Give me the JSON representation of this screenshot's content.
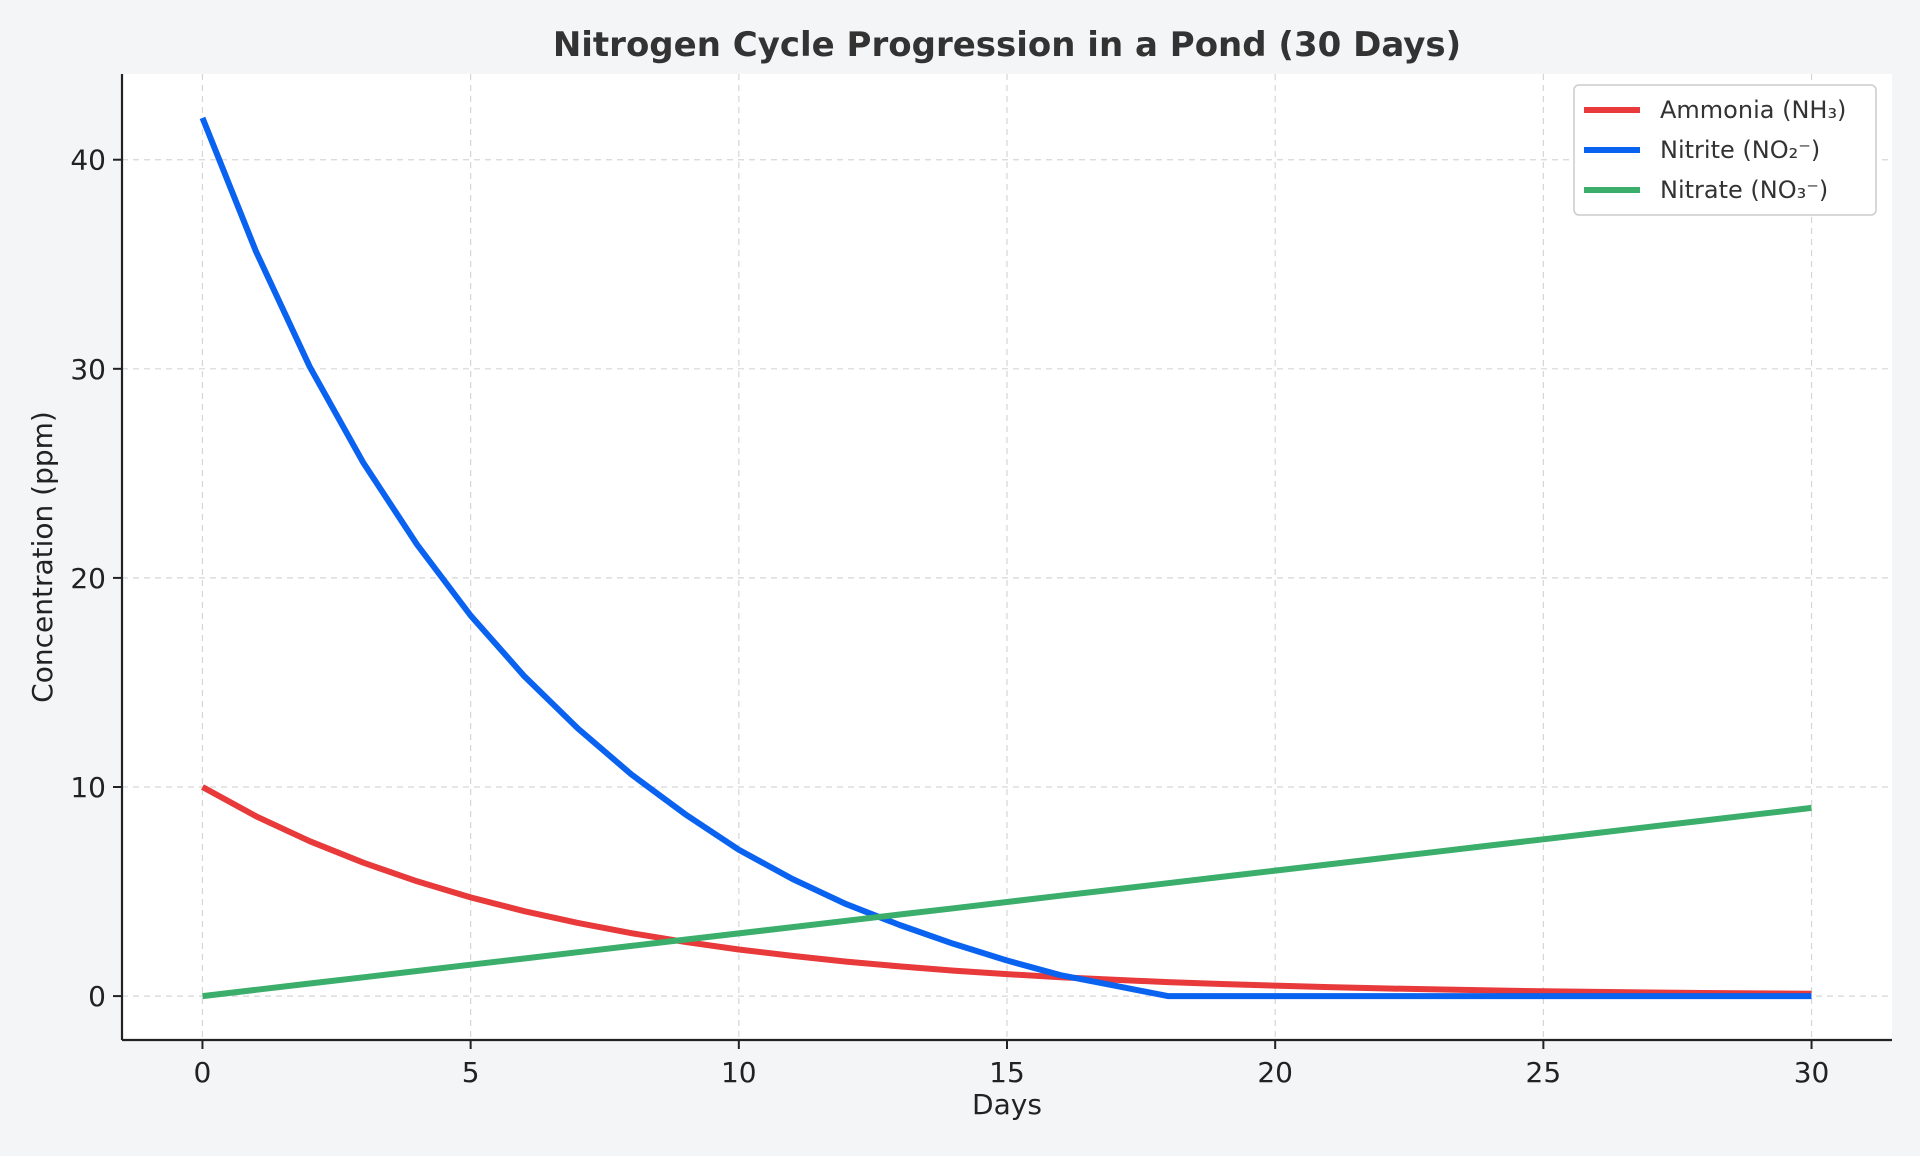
{
  "chart_data": {
    "type": "line",
    "title": "Nitrogen Cycle Progression in a Pond (30 Days)",
    "xlabel": "Days",
    "ylabel": "Concentration (ppm)",
    "xlim": [
      -1.5,
      31.5
    ],
    "ylim": [
      -2.1,
      44.1
    ],
    "x_ticks": [
      0,
      5,
      10,
      15,
      20,
      25,
      30
    ],
    "y_ticks": [
      0,
      10,
      20,
      30,
      40
    ],
    "grid": true,
    "legend_position": "top-right",
    "x": [
      0,
      1,
      2,
      3,
      4,
      5,
      6,
      7,
      8,
      9,
      10,
      11,
      12,
      13,
      14,
      15,
      16,
      17,
      18,
      19,
      20,
      21,
      22,
      23,
      24,
      25,
      26,
      27,
      28,
      29,
      30
    ],
    "series": [
      {
        "name": "Ammonia (NH₃)",
        "color": "#e8393b",
        "values": [
          10.0,
          8.6,
          7.41,
          6.38,
          5.49,
          4.72,
          4.06,
          3.5,
          3.01,
          2.59,
          2.23,
          1.92,
          1.65,
          1.42,
          1.22,
          1.05,
          0.9,
          0.78,
          0.67,
          0.58,
          0.5,
          0.43,
          0.37,
          0.32,
          0.27,
          0.23,
          0.2,
          0.17,
          0.15,
          0.13,
          0.11
        ]
      },
      {
        "name": "Nitrite (NO₂⁻)",
        "color": "#0a63f0",
        "values": [
          42.0,
          35.6,
          30.1,
          25.5,
          21.6,
          18.2,
          15.3,
          12.8,
          10.6,
          8.7,
          7.0,
          5.6,
          4.4,
          3.4,
          2.5,
          1.7,
          1.0,
          0.5,
          0.0,
          0.0,
          0.0,
          0.0,
          0.0,
          0.0,
          0.0,
          0.0,
          0.0,
          0.0,
          0.0,
          0.0,
          0.0
        ]
      },
      {
        "name": "Nitrate (NO₃⁻)",
        "color": "#3aae6a",
        "values": [
          0.0,
          0.3,
          0.6,
          0.9,
          1.2,
          1.5,
          1.8,
          2.1,
          2.4,
          2.7,
          3.0,
          3.3,
          3.6,
          3.9,
          4.2,
          4.5,
          4.8,
          5.1,
          5.4,
          5.7,
          6.0,
          6.3,
          6.6,
          6.9,
          7.2,
          7.5,
          7.8,
          8.1,
          8.4,
          8.7,
          9.0
        ]
      }
    ]
  }
}
